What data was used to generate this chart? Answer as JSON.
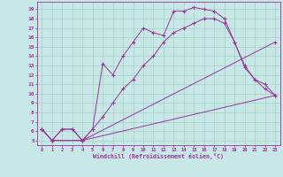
{
  "xlabel": "Windchill (Refroidissement éolien,°C)",
  "bg_color": "#c8e8e8",
  "line_color": "#993399",
  "grid_color": "#99ccbb",
  "xlim": [
    -0.5,
    23.5
  ],
  "ylim": [
    4.5,
    19.8
  ],
  "xticks": [
    0,
    1,
    2,
    3,
    4,
    5,
    6,
    7,
    8,
    9,
    10,
    11,
    12,
    13,
    14,
    15,
    16,
    17,
    18,
    19,
    20,
    21,
    22,
    23
  ],
  "yticks": [
    5,
    6,
    7,
    8,
    9,
    10,
    11,
    12,
    13,
    14,
    15,
    16,
    17,
    18,
    19
  ],
  "curves": [
    {
      "x": [
        0,
        1,
        2,
        3,
        4,
        5,
        6,
        7,
        8,
        9,
        10,
        11,
        12,
        13,
        14,
        15,
        16,
        17,
        18,
        19,
        20,
        21,
        22,
        23
      ],
      "y": [
        6.2,
        5.0,
        6.2,
        6.2,
        5.0,
        6.2,
        13.2,
        12.0,
        14.0,
        15.5,
        17.0,
        16.5,
        16.2,
        18.8,
        18.8,
        19.2,
        19.0,
        18.8,
        18.0,
        15.5,
        12.8,
        11.5,
        11.0,
        9.8
      ]
    },
    {
      "x": [
        0,
        1,
        2,
        3,
        4,
        5,
        6,
        7,
        8,
        9,
        10,
        11,
        12,
        13,
        14,
        15,
        16,
        17,
        18,
        19,
        20,
        21,
        22,
        23
      ],
      "y": [
        6.2,
        5.0,
        6.2,
        6.2,
        5.0,
        6.2,
        7.5,
        9.0,
        10.5,
        11.5,
        13.0,
        14.0,
        15.5,
        16.5,
        17.0,
        17.5,
        18.0,
        18.0,
        17.5,
        15.5,
        13.0,
        11.5,
        10.5,
        9.8
      ]
    },
    {
      "x": [
        0,
        1,
        4,
        23
      ],
      "y": [
        6.2,
        5.0,
        5.0,
        9.8
      ]
    },
    {
      "x": [
        0,
        1,
        4,
        23
      ],
      "y": [
        6.2,
        5.0,
        5.0,
        15.5
      ]
    }
  ]
}
